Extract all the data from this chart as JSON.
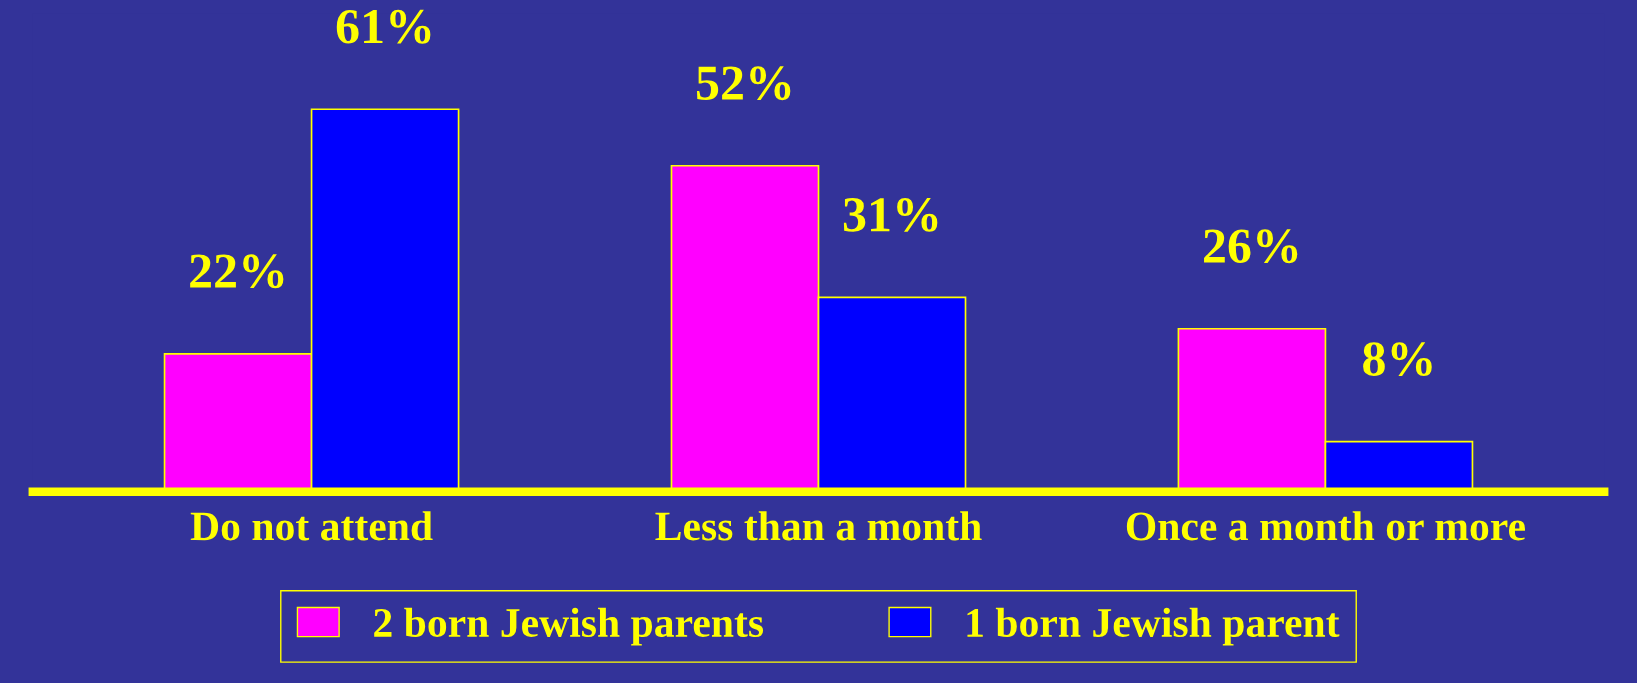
{
  "chart_data": {
    "type": "bar",
    "categories": [
      "Do not attend",
      "Less than a month",
      "Once a month or more"
    ],
    "series": [
      {
        "name": "2 born Jewish parents",
        "color": "#ff00ff",
        "values": [
          22,
          52,
          26
        ],
        "value_labels": [
          "22%",
          "52%",
          "26%"
        ]
      },
      {
        "name": "1 born Jewish parent",
        "color": "#0000ff",
        "values": [
          61,
          31,
          8
        ],
        "value_labels": [
          "61%",
          "31%",
          "8%"
        ]
      }
    ],
    "legend": "bottom"
  }
}
